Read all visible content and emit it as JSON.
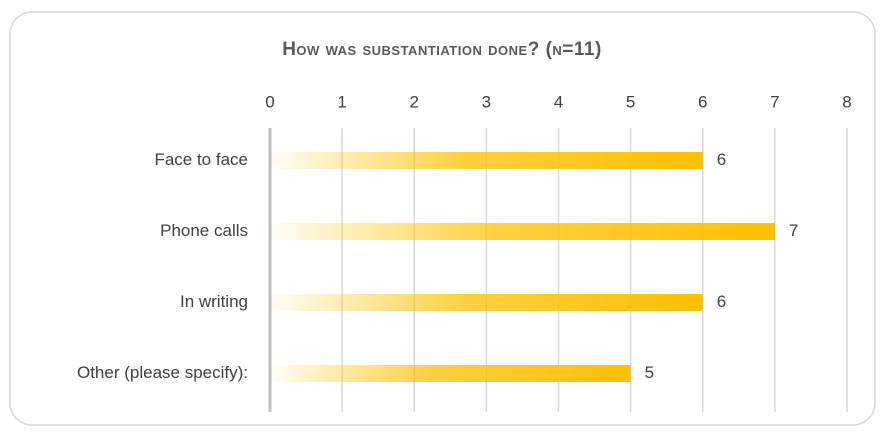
{
  "chart_data": {
    "type": "barh",
    "title": "How was substantiation done? (n=11)",
    "categories": [
      "Face to face",
      "Phone calls",
      "In writing",
      "Other (please specify):"
    ],
    "values": [
      6,
      7,
      6,
      5
    ],
    "color": "#ffc000",
    "xlim": [
      0,
      8
    ],
    "xticks": [
      0,
      1,
      2,
      3,
      4,
      5,
      6,
      7,
      8
    ],
    "grid": true
  }
}
